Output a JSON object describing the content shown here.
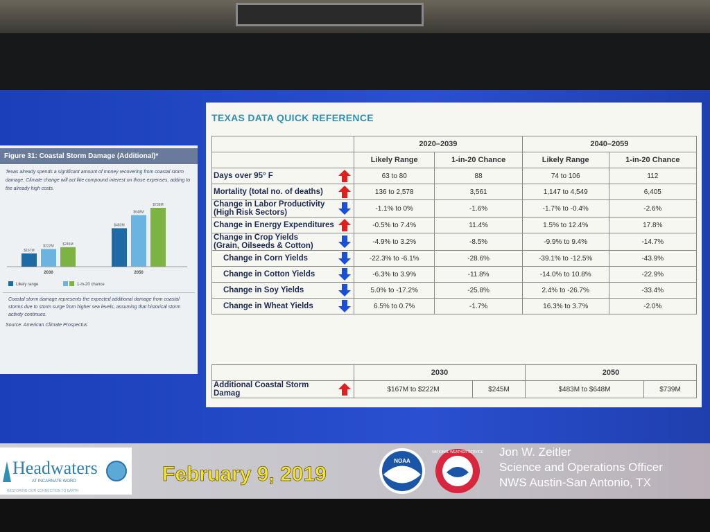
{
  "figure": {
    "title": "Figure 31: Coastal Storm Damage (Additional)*",
    "intro": "Texas already spends a significant amount of money recovering from coastal storm damage. Climate change will act like compound interest on those expenses, adding to the already high costs.",
    "caption": "Coastal storm damage represents the expected additional damage from coastal storms due to storm surge from higher sea levels, assuming that historical storm activity continues.",
    "source": "Source: American Climate Prospectus"
  },
  "chart_data": {
    "type": "bar",
    "categories": [
      "2030",
      "2050"
    ],
    "series": [
      {
        "name": "Likely range",
        "color": "#1d6aa5",
        "values": [
          167,
          483
        ],
        "value_labels": [
          "$167M",
          "$483M"
        ]
      },
      {
        "color": "#6bb3e0",
        "values": [
          222,
          648
        ],
        "value_labels": [
          "$222M",
          "$648M"
        ]
      },
      {
        "name": "1-in-20 chance",
        "color": "#7cb342",
        "values": [
          245,
          739
        ],
        "value_labels": [
          "$245M",
          "$739M"
        ]
      }
    ]
  },
  "table": {
    "title": "TEXAS DATA QUICK REFERENCE",
    "periods": [
      "2020–2039",
      "2040–2059"
    ],
    "columns": [
      "Likely Range",
      "1-in-20 Chance",
      "Likely Range",
      "1-in-20 Chance"
    ],
    "rows": [
      {
        "label": [
          "Days over 95° F"
        ],
        "arrow": "up",
        "cells": [
          "63 to 80",
          "88",
          "74 to 106",
          "112"
        ]
      },
      {
        "label": [
          "Mortality (total no. of deaths)"
        ],
        "arrow": "up",
        "cells": [
          "136 to 2,578",
          "3,561",
          "1,147 to 4,549",
          "6,405"
        ]
      },
      {
        "label": [
          "Change in Labor Productivity",
          "(High Risk Sectors)"
        ],
        "arrow": "down",
        "cells": [
          "-1.1% to 0%",
          "-1.6%",
          "-1.7% to -0.4%",
          "-2.6%"
        ]
      },
      {
        "label": [
          "Change in Energy Expenditures"
        ],
        "arrow": "up",
        "cells": [
          "-0.5% to 7.4%",
          "11.4%",
          "1.5% to 12.4%",
          "17.8%"
        ]
      },
      {
        "label": [
          "Change in Crop Yields",
          "(Grain, Oilseeds & Cotton)"
        ],
        "arrow": "down",
        "cells": [
          "-4.9% to 3.2%",
          "-8.5%",
          "-9.9% to 9.4%",
          "-14.7%"
        ]
      },
      {
        "label": [
          "Change in Corn Yields"
        ],
        "arrow": "down",
        "indent": true,
        "cells": [
          "-22.3% to -6.1%",
          "-28.6%",
          "-39.1% to -12.5%",
          "-43.9%"
        ]
      },
      {
        "label": [
          "Change in Cotton Yields"
        ],
        "arrow": "down",
        "indent": true,
        "cells": [
          "-6.3% to 3.9%",
          "-11.8%",
          "-14.0% to 10.8%",
          "-22.9%"
        ]
      },
      {
        "label": [
          "Change in Soy Yields"
        ],
        "arrow": "down",
        "indent": true,
        "cells": [
          "5.0% to -17.2%",
          "-25.8%",
          "2.4% to -26.7%",
          "-33.4%"
        ]
      },
      {
        "label": [
          "Change in Wheat Yields"
        ],
        "arrow": "down",
        "indent": true,
        "cells": [
          "6.5% to 0.7%",
          "-1.7%",
          "16.3% to 3.7%",
          "-2.0%"
        ]
      }
    ],
    "storm": {
      "years": [
        "2030",
        "2050"
      ],
      "label": [
        "Additional Coastal Storm Damag"
      ],
      "arrow": "up",
      "cells": [
        "$167M to $222M",
        "$245M",
        "$483M to $648M",
        "$739M"
      ]
    }
  },
  "footer": {
    "logo_name": "Headwaters",
    "logo_sub": "AT INCARNATE WORD",
    "logo_tagline": "RESTORING OUR CONNECTION TO EARTH",
    "date": "February 9, 2019",
    "noaa": "NOAA",
    "nws": "NATIONAL WEATHER SERVICE",
    "presenter": [
      "Jon W. Zeitler",
      "Science and Operations Officer",
      "NWS Austin-San Antonio, TX"
    ]
  }
}
